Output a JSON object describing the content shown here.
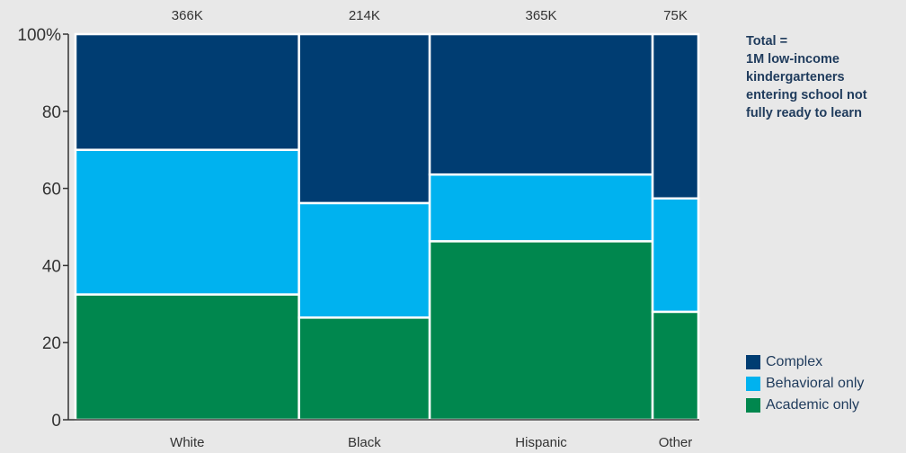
{
  "chart_data": {
    "type": "mosaic",
    "categories": [
      "White",
      "Black",
      "Hispanic",
      "Other"
    ],
    "totals": [
      366,
      214,
      365,
      75
    ],
    "total_labels": [
      "366K",
      "214K",
      "365K",
      "75K"
    ],
    "series": [
      {
        "name": "Academic only",
        "values": [
          32.5,
          26.5,
          46.3,
          28.0
        ],
        "color": "#00874e"
      },
      {
        "name": "Behavioral only",
        "values": [
          37.5,
          29.7,
          17.3,
          29.4
        ],
        "color": "#00b2ef"
      },
      {
        "name": "Complex",
        "values": [
          30.0,
          43.8,
          36.4,
          42.6
        ],
        "color": "#003d72"
      }
    ],
    "ylim": [
      0,
      100
    ],
    "y_ticks": [
      0,
      20,
      40,
      60,
      80,
      100
    ],
    "y_tick_labels": [
      "0",
      "20",
      "40",
      "60",
      "80",
      "100%"
    ],
    "legend_position": "bottom-right",
    "grid": false
  },
  "note": {
    "lines": [
      "Total =",
      "1M low-income",
      "kindergarteners",
      "entering school not",
      "fully ready to learn"
    ]
  },
  "legend": [
    {
      "label": "Complex",
      "color": "#003d72"
    },
    {
      "label": "Behavioral only",
      "color": "#00b2ef"
    },
    {
      "label": "Academic only",
      "color": "#00874e"
    }
  ]
}
